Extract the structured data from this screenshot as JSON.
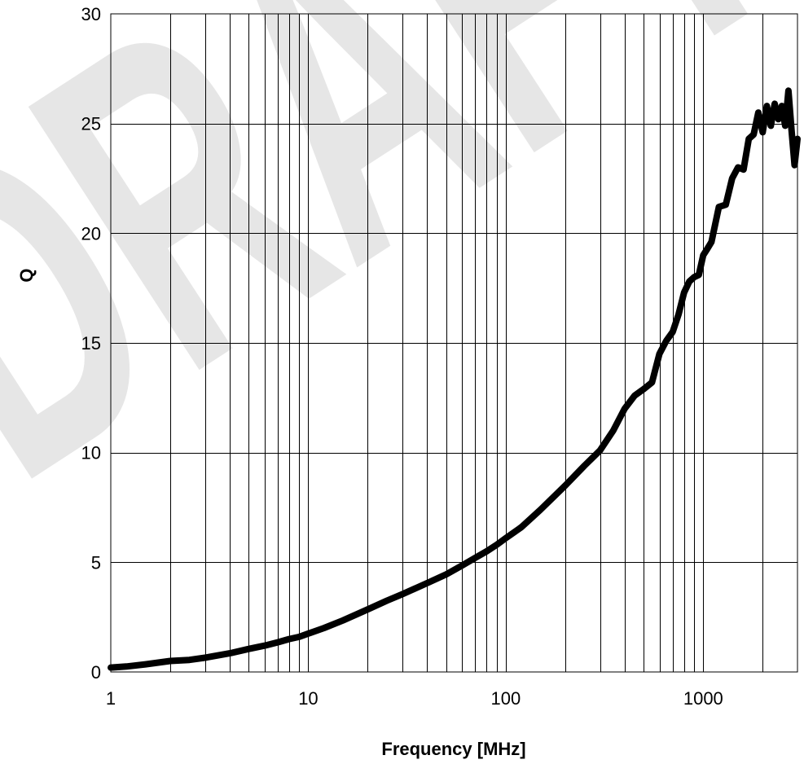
{
  "watermark": {
    "text": "DRAFT",
    "color": "#e6e6e6"
  },
  "chart_data": {
    "type": "line",
    "title": "",
    "xlabel": "Frequency [MHz]",
    "ylabel": "Q",
    "xscale": "log",
    "xlim": [
      1,
      3000
    ],
    "ylim": [
      0,
      30
    ],
    "grid": true,
    "legend": "none",
    "xticks": [
      1,
      10,
      100,
      1000
    ],
    "xtick_labels": [
      "1",
      "10",
      "100",
      "1000"
    ],
    "yticks": [
      0,
      5,
      10,
      15,
      20,
      25,
      30
    ],
    "ytick_labels": [
      "0",
      "5",
      "10",
      "15",
      "20",
      "25",
      "30"
    ],
    "line_color": "#000000",
    "series": [
      {
        "x": [
          1,
          1.2,
          1.5,
          2,
          2.5,
          3,
          4,
          5,
          6,
          7,
          8,
          9,
          10,
          12,
          15,
          20,
          25,
          30,
          40,
          50,
          60,
          70,
          80,
          90,
          100,
          120,
          150,
          200,
          250,
          300,
          350,
          400,
          450,
          500,
          550,
          600,
          650,
          700,
          750,
          800,
          850,
          900,
          950,
          1000,
          1050,
          1100,
          1200,
          1300,
          1400,
          1500,
          1600,
          1700,
          1800,
          1900,
          2000,
          2100,
          2200,
          2300,
          2400,
          2500,
          2600,
          2700,
          2800,
          2900,
          3000
        ],
        "y": [
          0.2,
          0.25,
          0.35,
          0.5,
          0.55,
          0.65,
          0.85,
          1.05,
          1.2,
          1.35,
          1.5,
          1.6,
          1.75,
          2.0,
          2.35,
          2.85,
          3.25,
          3.55,
          4.05,
          4.45,
          4.85,
          5.2,
          5.5,
          5.8,
          6.1,
          6.6,
          7.4,
          8.5,
          9.4,
          10.1,
          11.0,
          12.0,
          12.6,
          12.9,
          13.2,
          14.5,
          15.1,
          15.5,
          16.3,
          17.3,
          17.8,
          18.0,
          18.1,
          19.0,
          19.3,
          19.6,
          21.2,
          21.3,
          22.5,
          23.0,
          22.9,
          24.3,
          24.5,
          25.5,
          24.6,
          25.8,
          24.9,
          25.9,
          25.2,
          25.8,
          24.9,
          26.5,
          24.7,
          23.1,
          24.3
        ]
      }
    ]
  }
}
